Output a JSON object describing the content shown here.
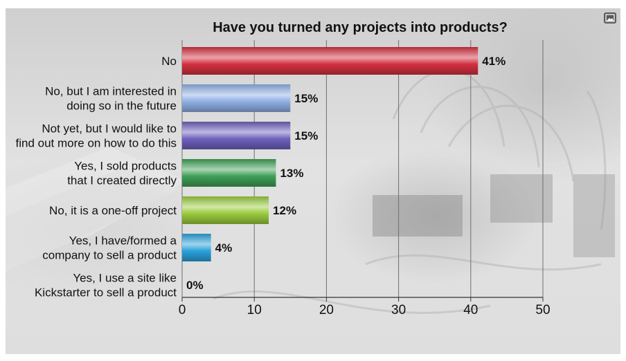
{
  "chart_data": {
    "type": "bar",
    "orientation": "horizontal",
    "title": "Have you turned any projects into products?",
    "categories": [
      [
        "No"
      ],
      [
        "No, but I am interested in",
        "doing so in the future"
      ],
      [
        "Not yet, but I would like to",
        "find out more on how to do this"
      ],
      [
        "Yes, I sold products",
        "that I created directly"
      ],
      [
        "No, it is a one-off project"
      ],
      [
        "Yes, I have/formed a",
        "company to sell a product"
      ],
      [
        "Yes, I use a site like",
        "Kickstarter to sell a product"
      ]
    ],
    "values": [
      41,
      15,
      15,
      13,
      12,
      4,
      0
    ],
    "value_labels": [
      "41%",
      "15%",
      "15%",
      "13%",
      "12%",
      "4%",
      "0%"
    ],
    "colors": [
      "#d3303f",
      "#8fb0e4",
      "#6e61bd",
      "#3f9f57",
      "#9acb3d",
      "#2aa1dc",
      "#999999"
    ],
    "xlim": [
      0,
      50
    ],
    "xticks": [
      0,
      10,
      20,
      30,
      40,
      50
    ],
    "xtick_labels": [
      "0",
      "10",
      "20",
      "30",
      "40",
      "50"
    ],
    "grid": true,
    "xlabel": "",
    "ylabel": ""
  },
  "icons": {
    "corner": "image-icon"
  }
}
